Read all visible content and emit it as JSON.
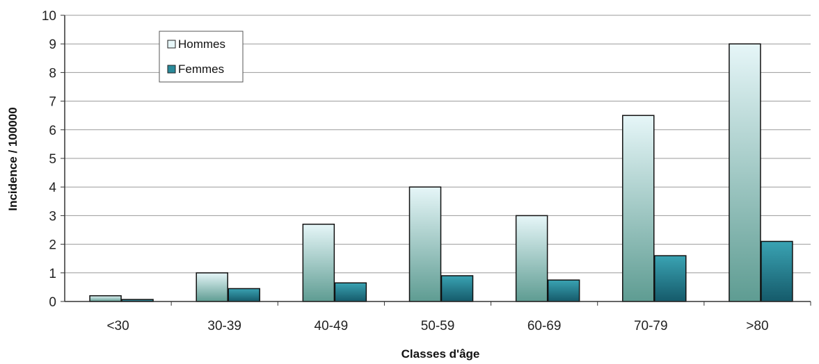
{
  "chart_data": {
    "type": "bar",
    "title": "",
    "xlabel": "Classes d'âge",
    "ylabel": "Incidence / 100000",
    "ylim": [
      0,
      10
    ],
    "yticks": [
      "0",
      "1",
      "2",
      "3",
      "4",
      "5",
      "6",
      "7",
      "8",
      "9",
      "10"
    ],
    "categories": [
      "<30",
      "30-39",
      "40-49",
      "50-59",
      "60-69",
      "70-79",
      ">80"
    ],
    "grid": true,
    "legend_position": "top-left",
    "series": [
      {
        "name": "Hommes",
        "values": [
          0.2,
          1.0,
          2.7,
          4.0,
          3.0,
          6.5,
          9.0
        ],
        "color_top": "#e6f6f8",
        "color_bottom": "#5e9c92"
      },
      {
        "name": "Femmes",
        "values": [
          0.07,
          0.45,
          0.65,
          0.9,
          0.75,
          1.6,
          2.1
        ],
        "color_top": "#3aa3b3",
        "color_bottom": "#155a6a"
      }
    ]
  }
}
